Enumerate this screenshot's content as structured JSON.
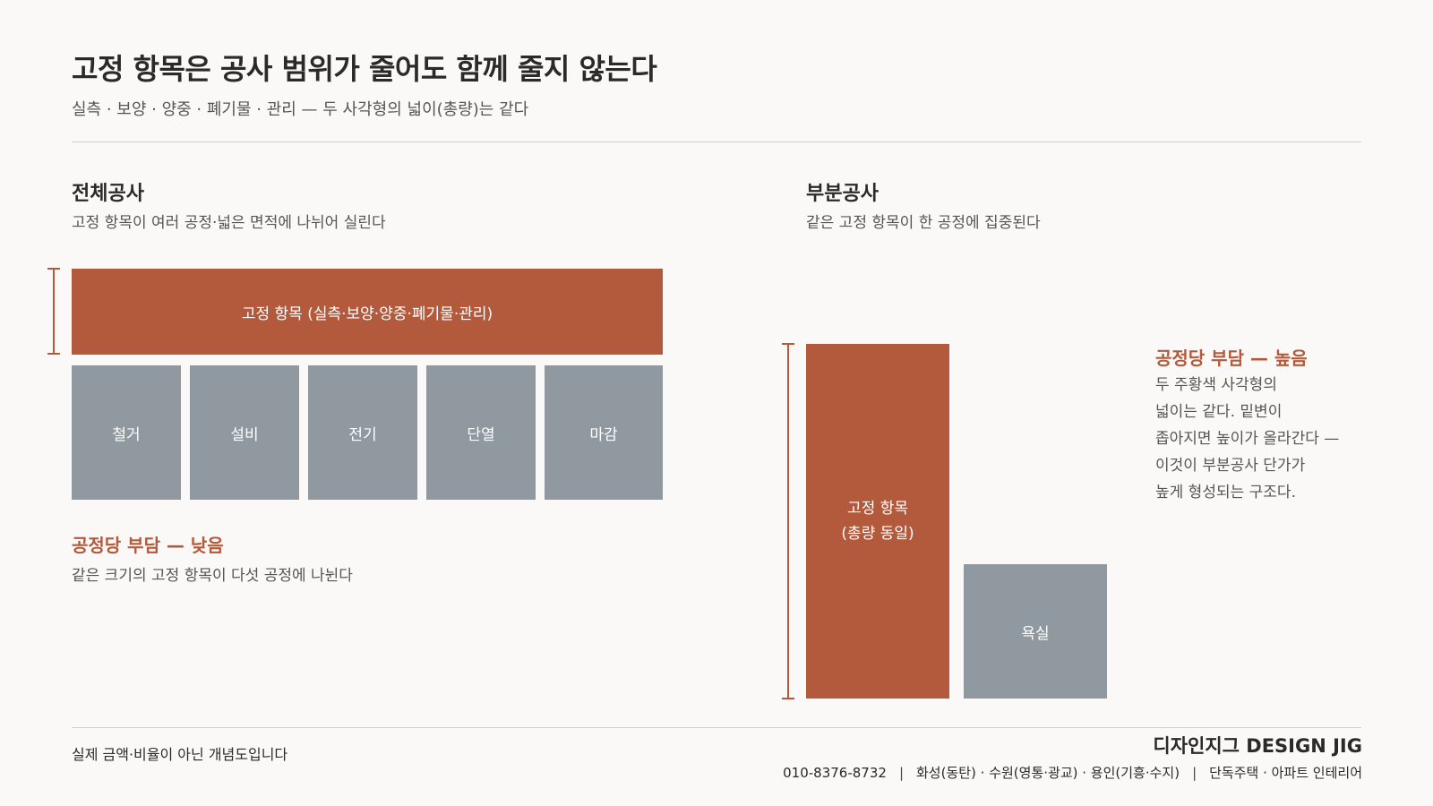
{
  "header": {
    "title": "고정 항목은 공사 범위가 줄어도 함께 줄지 않는다",
    "subtitle": "실측 · 보양 · 양중 · 폐기물 · 관리 — 두 사각형의 넓이(총량)는 같다"
  },
  "left_panel": {
    "title": "전체공사",
    "description": "고정 항목이 여러 공정·넓은 면적에 나뉘어 실린다",
    "fixed_label": "고정 항목 (실측·보양·양중·폐기물·관리)",
    "stages": [
      "철거",
      "설비",
      "전기",
      "단열",
      "마감"
    ],
    "burden_title": "공정당 부담 — 낮음",
    "burden_desc": "같은 크기의 고정 항목이 다섯 공정에 나뉜다"
  },
  "right_panel": {
    "title": "부분공사",
    "description": "같은 고정 항목이 한 공정에 집중된다",
    "fixed_label_line1": "고정 항목",
    "fixed_label_line2": "(총량 동일)",
    "stage": "욕실",
    "burden_title": "공정당 부담 — 높음",
    "burden_lines": [
      "두 주황색 사각형의",
      "넓이는 같다. 밑변이",
      "좁아지면 높이가 올라간다 —",
      "이것이 부분공사 단가가",
      "높게 형성되는 구조다."
    ]
  },
  "footer": {
    "disclaimer": "실제 금액·비율이 아닌 개념도입니다",
    "brand": "디자인지그 DESIGN JIG",
    "phone": "010-8376-8732",
    "areas": "화성(동탄) · 수원(영통·광교) · 용인(기흥·수지)",
    "services": "단독주택 · 아파트 인테리어"
  },
  "colors": {
    "accent": "#b35a3c",
    "stage_gray": "#8f999f",
    "background": "#faf9f7"
  }
}
